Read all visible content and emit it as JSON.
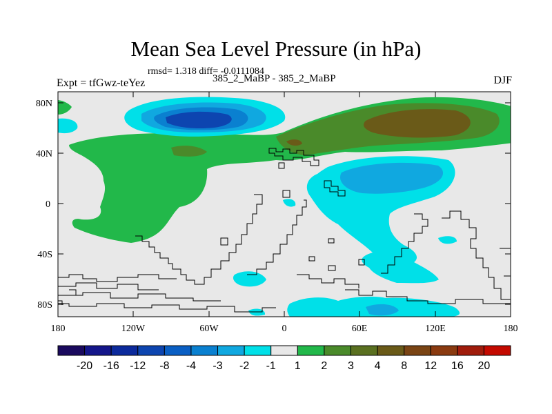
{
  "title": "Mean Sea Level Pressure (in hPa)",
  "stats": "rmsd= 1.318 diff= -0.0111084",
  "experiment": "Expt = tfGwz-teYez",
  "case_label": "385_2_MaBP - 385_2_MaBP",
  "season": "DJF",
  "y_ticks": [
    "80N",
    "40N",
    "0",
    "40S",
    "80S"
  ],
  "x_ticks": [
    "180",
    "120W",
    "60W",
    "0",
    "60E",
    "120E",
    "180"
  ],
  "colorbar": {
    "colors": [
      "#1a0a5e",
      "#14168a",
      "#0c2a9c",
      "#0d45b0",
      "#0a5fc4",
      "#0a80d0",
      "#10a8e0",
      "#00e0e8",
      "#e8e8e8",
      "#22b84a",
      "#4a8a2a",
      "#5a7020",
      "#6a5a18",
      "#7a4414",
      "#8a3a10",
      "#a01c0c",
      "#c40a00"
    ],
    "labels": [
      "-20",
      "-16",
      "-12",
      "-8",
      "-4",
      "-3",
      "-2",
      "-1",
      "1",
      "2",
      "3",
      "4",
      "8",
      "12",
      "16",
      "20"
    ]
  },
  "legend_colors": {
    "ocean_bg": "#e8e8e8",
    "coast": "#000000"
  }
}
